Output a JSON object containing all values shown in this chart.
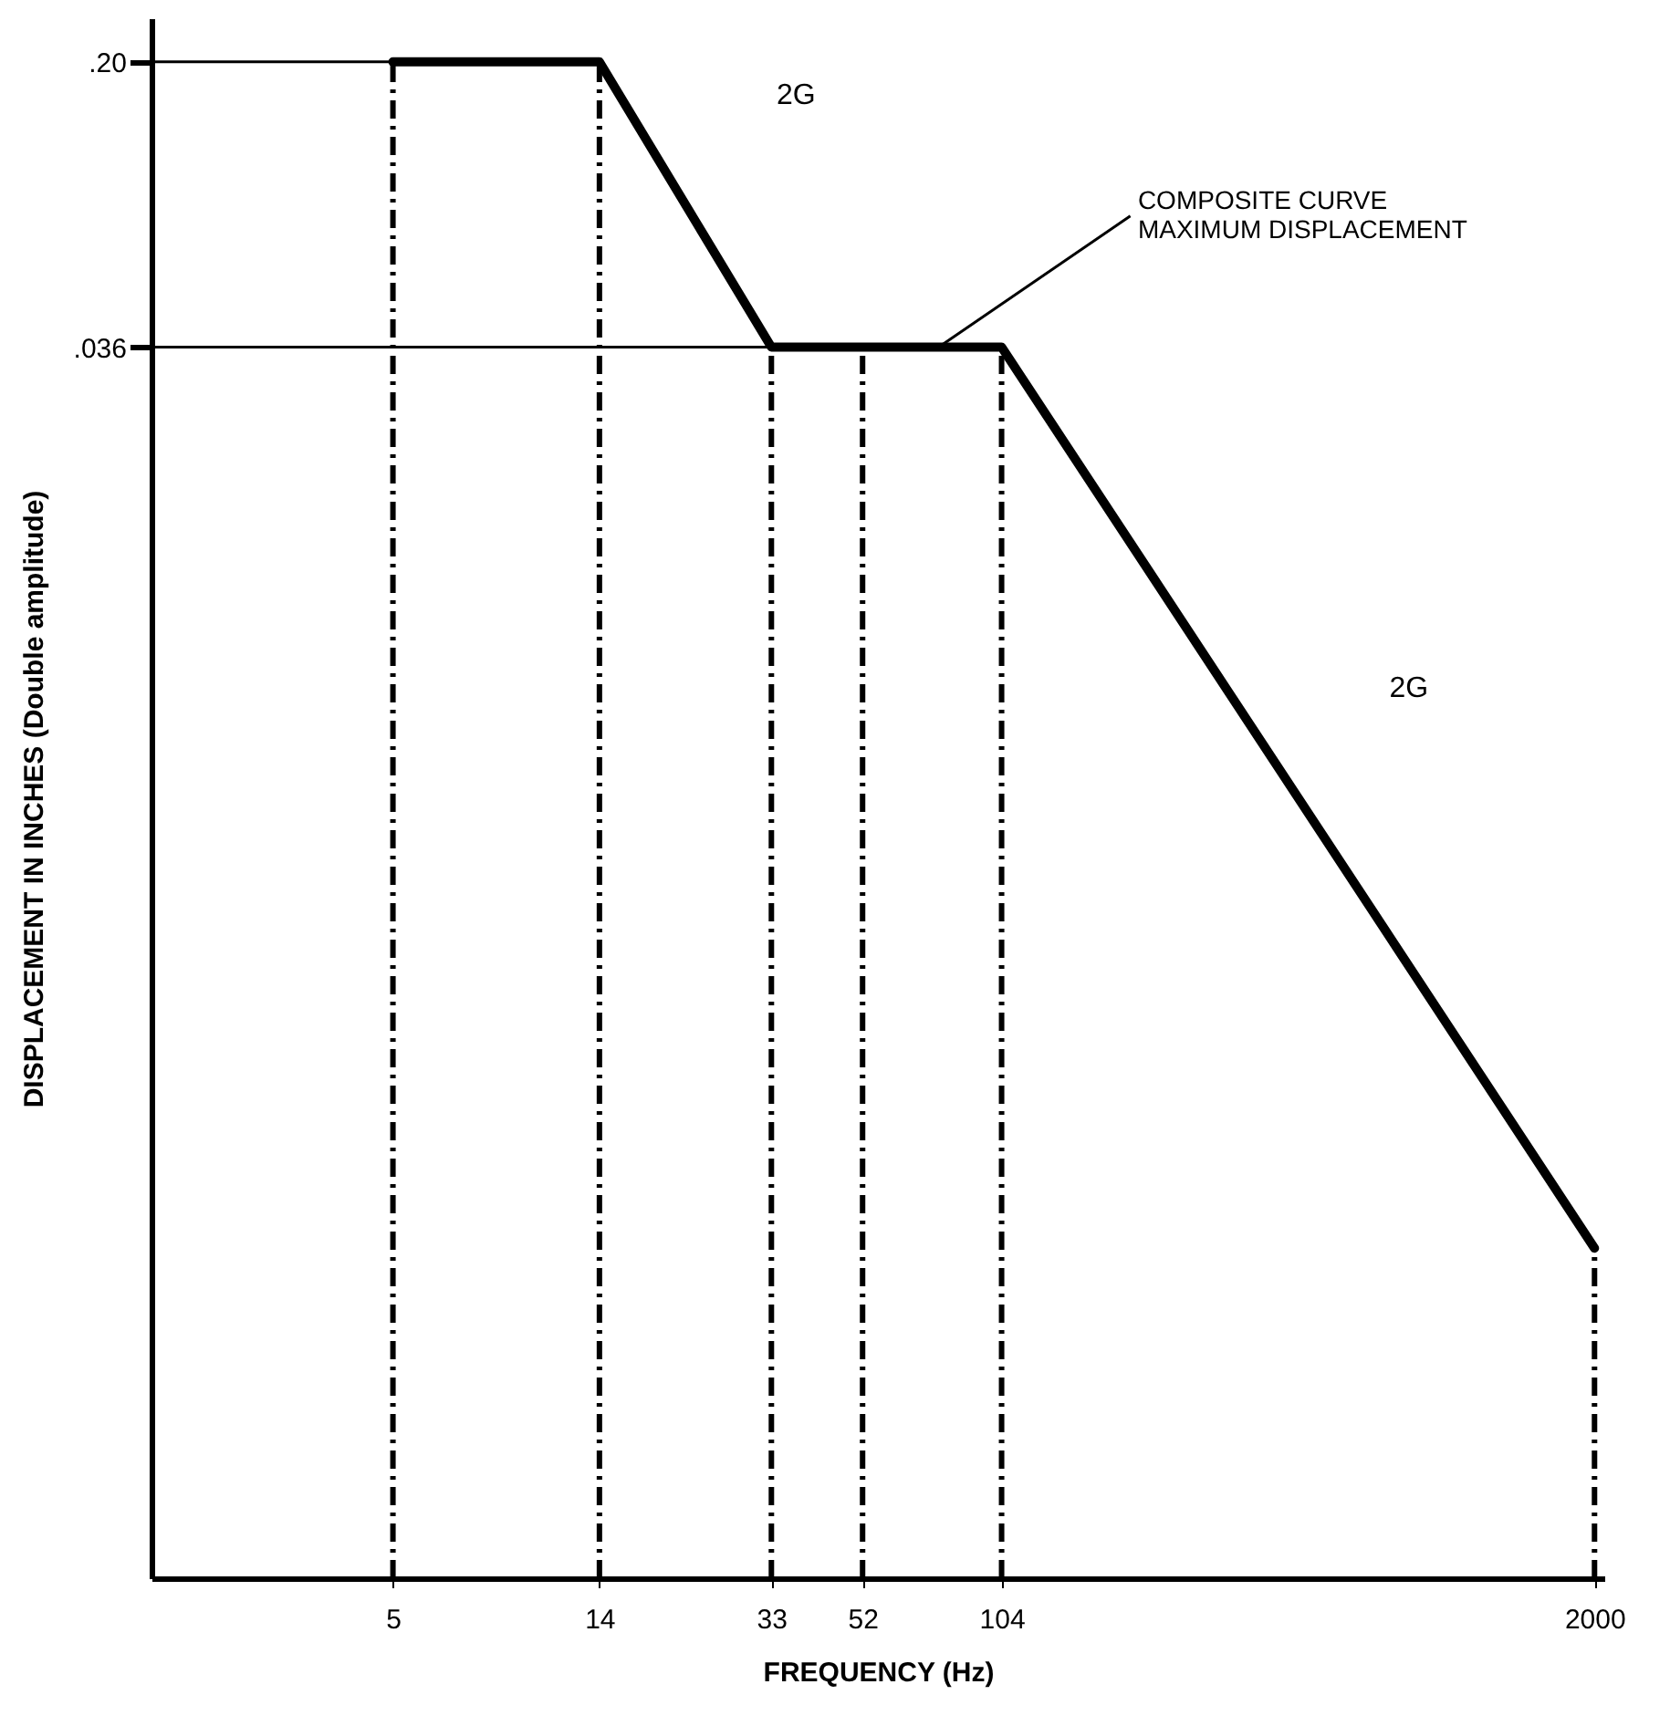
{
  "chart_data": {
    "type": "line",
    "xlabel": "FREQUENCY (Hz)",
    "ylabel": "DISPLACEMENT IN INCHES (Double amplitude)",
    "x": [
      5,
      14,
      33,
      104,
      2000
    ],
    "series": [
      {
        "color": "#000000",
        "values": [
          0.2,
          0.2,
          0.036,
          0.036,
          0.00016
        ]
      }
    ],
    "log": "xy",
    "xlim": [
      1.5,
      2100
    ],
    "ylim": [
      2.2e-05,
      0.26
    ],
    "xticks": [
      5,
      14,
      33,
      52,
      104,
      2000
    ],
    "yticks": [
      {
        "value": 0.2,
        "label": ".20"
      },
      {
        "value": 0.036,
        "label": ".036"
      }
    ],
    "grid": false,
    "marker": "none",
    "line_style": "solid",
    "ref_lines": [
      {
        "axis": "x",
        "value": 5,
        "line_style": "dashed"
      },
      {
        "axis": "x",
        "value": 14,
        "line_style": "dashed"
      },
      {
        "axis": "x",
        "value": 33,
        "line_style": "dashed"
      },
      {
        "axis": "x",
        "value": 52,
        "line_style": "dashed"
      },
      {
        "axis": "x",
        "value": 104,
        "line_style": "dashed"
      },
      {
        "axis": "x",
        "value": 2000,
        "line_style": "dashed"
      },
      {
        "axis": "y",
        "value": 0.2,
        "line_style": "solid"
      },
      {
        "axis": "y",
        "value": 0.036,
        "line_style": "solid"
      }
    ],
    "annotations": [
      "2G",
      "2G",
      {
        "text": "COMPOSITE CURVE\nMAXIMUM DISPLACEMENT",
        "x": 76,
        "y": 0.036
      }
    ]
  }
}
